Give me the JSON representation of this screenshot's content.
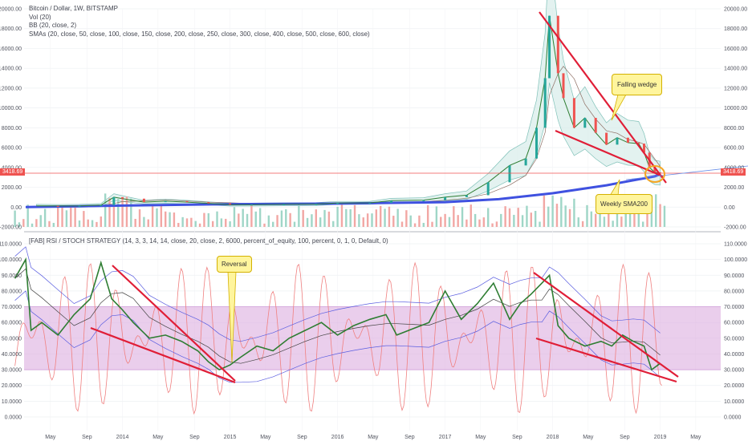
{
  "legend": {
    "main_title": "Bitcoin / Dollar, 1W, BITSTAMP",
    "vol": "Vol (20)",
    "bb": "BB (20, close, 2)",
    "smas": "SMAs (20, close, 50, close, 100, close, 150, close, 200, close, 250, close, 300, close, 400, close, 500, close, 600, close)",
    "osc": "[FAB] RSI / STOCH STRATEGY (14, 3, 3, 14, 14, close, 20, close, 2, 6000, percent_of_equity, 100, percent, 0, 1, 0, Default, 0)"
  },
  "price_tag": "3418.69",
  "callouts": {
    "falling_wedge": "Falling wedge",
    "weekly_sma": "Weekly SMA200",
    "reversal": "Reversal"
  },
  "colors": {
    "up": "#26a69a",
    "down": "#ef5350",
    "trendline": "#e01e37",
    "sma200": "#3f51e0",
    "band": "#d9a6dd",
    "rsi": "#2e7d32",
    "stoch": "#f08080",
    "bb_fill": "#d7ece9"
  },
  "chart_data": [
    {
      "type": "line",
      "title": "Bitcoin / Dollar, 1W, BITSTAMP",
      "y_ticks": [
        "20000.00",
        "18000.00",
        "16000.00",
        "14000.00",
        "12000.00",
        "10000.00",
        "8000.00",
        "6000.00",
        "4000.00",
        "2000.00",
        "0.00",
        "-2000.00"
      ],
      "ylim": [
        -2000,
        20000
      ],
      "x_ticks": [
        "May",
        "Sep",
        "2014",
        "May",
        "Sep",
        "2015",
        "May",
        "Sep",
        "2016",
        "May",
        "Sep",
        "2017",
        "May",
        "Sep",
        "2018",
        "May",
        "Sep",
        "2019",
        "May"
      ],
      "series": [
        {
          "name": "price",
          "x": [
            2013.2,
            2013.4,
            2013.6,
            2013.8,
            2013.92,
            2014.0,
            2014.2,
            2014.4,
            2014.6,
            2014.8,
            2015.0,
            2015.2,
            2015.5,
            2015.8,
            2016.0,
            2016.3,
            2016.5,
            2016.8,
            2017.0,
            2017.2,
            2017.4,
            2017.6,
            2017.75,
            2017.85,
            2017.93,
            2017.97,
            2018.05,
            2018.1,
            2018.2,
            2018.3,
            2018.4,
            2018.5,
            2018.6,
            2018.7,
            2018.8,
            2018.85,
            2018.9,
            2018.95,
            2019.0
          ],
          "y": [
            120,
            110,
            130,
            200,
            1000,
            850,
            500,
            600,
            500,
            380,
            250,
            250,
            280,
            300,
            420,
            430,
            650,
            700,
            1000,
            1200,
            2500,
            4200,
            4900,
            8000,
            13000,
            19300,
            13500,
            11000,
            8000,
            9000,
            7500,
            6300,
            7000,
            6500,
            6400,
            5500,
            4000,
            3500,
            3418.69
          ]
        },
        {
          "name": "SMA200 weekly",
          "x": [
            2013.1,
            2014.0,
            2015.0,
            2016.0,
            2017.0,
            2017.5,
            2018.0,
            2018.5,
            2018.95,
            2019.0
          ],
          "y": [
            0,
            150,
            300,
            350,
            500,
            800,
            1400,
            2200,
            3100,
            3300
          ]
        }
      ],
      "annotations": [
        "Falling wedge",
        "Weekly SMA200"
      ],
      "price_line": 3418.69
    },
    {
      "type": "line",
      "title": "[FAB] RSI / STOCH STRATEGY",
      "y_ticks": [
        "110.0000",
        "100.0000",
        "90.0000",
        "80.0000",
        "70.0000",
        "60.0000",
        "50.0000",
        "40.0000",
        "30.0000",
        "20.0000",
        "10.0000",
        "0.0000"
      ],
      "ylim": [
        -5,
        110
      ],
      "band": [
        30,
        70
      ],
      "series": [
        {
          "name": "RSI",
          "x": [
            2013.0,
            2013.1,
            2013.15,
            2013.25,
            2013.4,
            2013.55,
            2013.7,
            2013.8,
            2013.9,
            2014.0,
            2014.1,
            2014.25,
            2014.4,
            2014.55,
            2014.7,
            2014.8,
            2014.9,
            2015.0,
            2015.1,
            2015.25,
            2015.4,
            2015.55,
            2015.7,
            2015.85,
            2016.0,
            2016.15,
            2016.3,
            2016.45,
            2016.55,
            2016.7,
            2016.85,
            2017.0,
            2017.15,
            2017.3,
            2017.45,
            2017.6,
            2017.7,
            2017.8,
            2017.9,
            2017.97,
            2018.05,
            2018.15,
            2018.3,
            2018.45,
            2018.55,
            2018.65,
            2018.75,
            2018.85,
            2018.92,
            2019.0
          ],
          "y": [
            88,
            100,
            55,
            60,
            52,
            65,
            75,
            98,
            75,
            68,
            60,
            50,
            52,
            48,
            42,
            35,
            30,
            33,
            38,
            45,
            42,
            50,
            55,
            60,
            52,
            58,
            62,
            65,
            52,
            56,
            60,
            80,
            62,
            72,
            85,
            62,
            72,
            78,
            85,
            90,
            58,
            50,
            45,
            48,
            45,
            52,
            48,
            45,
            30,
            34
          ]
        }
      ],
      "annotations": [
        "Reversal"
      ]
    }
  ]
}
